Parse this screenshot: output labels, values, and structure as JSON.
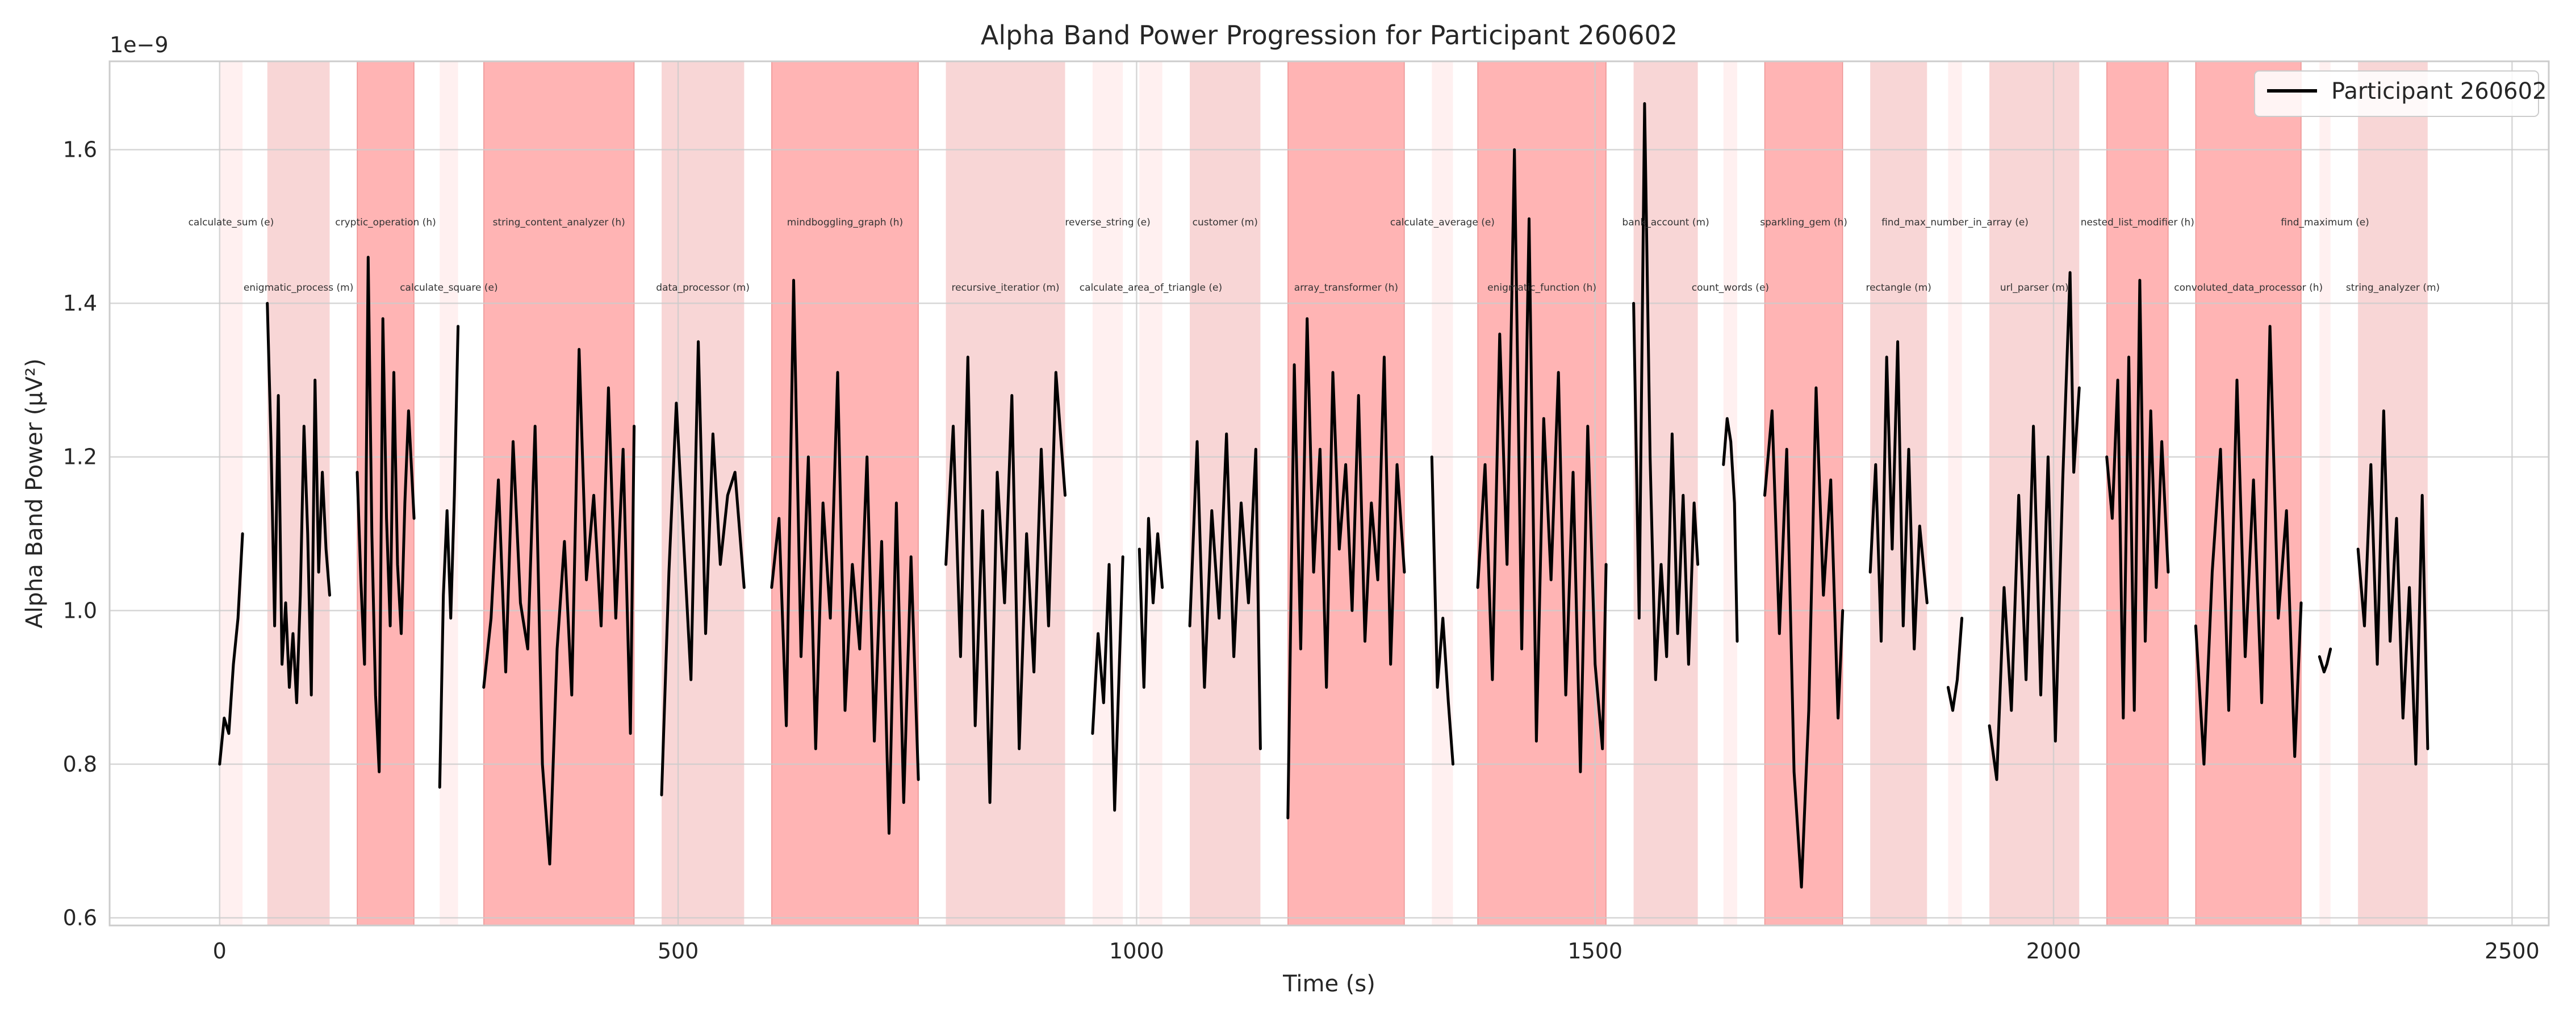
{
  "chart_data": {
    "type": "line",
    "title": "Alpha Band Power Progression for Participant 260602",
    "xlabel": "Time (s)",
    "ylabel": "Alpha Band Power (μV²)",
    "y_offset_text": "1e−9",
    "xlim": [
      -120,
      2540
    ],
    "ylim": [
      0.59,
      1.715
    ],
    "x_ticks": [
      0,
      500,
      1000,
      1500,
      2000,
      2500
    ],
    "x_tick_labels": [
      "0",
      "500",
      "1000",
      "1500",
      "2000",
      "2500"
    ],
    "y_ticks": [
      0.6,
      0.8,
      1.0,
      1.2,
      1.4,
      1.6
    ],
    "y_tick_labels": [
      "0.6",
      "0.8",
      "1.0",
      "1.2",
      "1.4",
      "1.6"
    ],
    "grid": true,
    "legend_position": "upper right",
    "legend": [
      {
        "name": "Participant 260602",
        "color": "#000000"
      }
    ],
    "difficulty_colors": {
      "e": "#fff0f0",
      "m": "#f8d6d6",
      "h": "#ffb0b0"
    },
    "tasks": [
      {
        "label": "calculate_sum (e)",
        "start": 0,
        "end": 25,
        "difficulty": "e",
        "row": 1
      },
      {
        "label": "enigmatic_process (m)",
        "start": 52,
        "end": 120,
        "difficulty": "m",
        "row": 2
      },
      {
        "label": "cryptic_operation (h)",
        "start": 150,
        "end": 212,
        "difficulty": "h",
        "row": 1
      },
      {
        "label": "calculate_square (e)",
        "start": 240,
        "end": 260,
        "difficulty": "e",
        "row": 2
      },
      {
        "label": "string_content_analyzer (h)",
        "start": 288,
        "end": 452,
        "difficulty": "h",
        "row": 1
      },
      {
        "label": "data_processor (m)",
        "start": 482,
        "end": 572,
        "difficulty": "m",
        "row": 2
      },
      {
        "label": "mindboggling_graph (h)",
        "start": 602,
        "end": 762,
        "difficulty": "h",
        "row": 1
      },
      {
        "label": "recursive_iteratior (m)",
        "start": 792,
        "end": 922,
        "difficulty": "m",
        "row": 2
      },
      {
        "label": "reverse_string (e)",
        "start": 952,
        "end": 985,
        "difficulty": "e",
        "row": 1
      },
      {
        "label": "calculate_area_of_triangle (e)",
        "start": 1003,
        "end": 1028,
        "difficulty": "e",
        "row": 2
      },
      {
        "label": "customer (m)",
        "start": 1058,
        "end": 1135,
        "difficulty": "m",
        "row": 1
      },
      {
        "label": "array_transformer (h)",
        "start": 1165,
        "end": 1292,
        "difficulty": "h",
        "row": 2
      },
      {
        "label": "calculate_average (e)",
        "start": 1322,
        "end": 1345,
        "difficulty": "e",
        "row": 1
      },
      {
        "label": "enigmatic_function (h)",
        "start": 1372,
        "end": 1512,
        "difficulty": "h",
        "row": 2
      },
      {
        "label": "bank_account (m)",
        "start": 1542,
        "end": 1612,
        "difficulty": "m",
        "row": 1
      },
      {
        "label": "count_words (e)",
        "start": 1640,
        "end": 1655,
        "difficulty": "e",
        "row": 2
      },
      {
        "label": "sparkling_gem (h)",
        "start": 1685,
        "end": 1770,
        "difficulty": "h",
        "row": 1
      },
      {
        "label": "rectangle (m)",
        "start": 1800,
        "end": 1862,
        "difficulty": "m",
        "row": 2
      },
      {
        "label": "find_max_number_in_array (e)",
        "start": 1885,
        "end": 1900,
        "difficulty": "e",
        "row": 1
      },
      {
        "label": "url_parser (m)",
        "start": 1930,
        "end": 2028,
        "difficulty": "m",
        "row": 2
      },
      {
        "label": "nested_list_modifier (h)",
        "start": 2058,
        "end": 2125,
        "difficulty": "h",
        "row": 1
      },
      {
        "label": "convoluted_data_processor (h)",
        "start": 2155,
        "end": 2270,
        "difficulty": "h",
        "row": 2
      },
      {
        "label": "find_maximum (e)",
        "start": 2290,
        "end": 2302,
        "difficulty": "e",
        "row": 1
      },
      {
        "label": "string_analyzer (m)",
        "start": 2332,
        "end": 2408,
        "difficulty": "m",
        "row": 2
      }
    ],
    "series": [
      {
        "name": "Participant 260602",
        "color": "#000000",
        "segments": [
          {
            "x": [
              0,
              5,
              10,
              15,
              20,
              25
            ],
            "y": [
              0.8,
              0.86,
              0.84,
              0.93,
              0.99,
              1.1
            ]
          },
          {
            "x": [
              52,
              56,
              60,
              64,
              68,
              72,
              76,
              80,
              84,
              88,
              92,
              96,
              100,
              104,
              108,
              112,
              116,
              120
            ],
            "y": [
              1.4,
              1.22,
              0.98,
              1.28,
              0.93,
              1.01,
              0.9,
              0.97,
              0.88,
              1.02,
              1.24,
              1.1,
              0.89,
              1.3,
              1.05,
              1.18,
              1.08,
              1.02
            ]
          },
          {
            "x": [
              150,
              154,
              158,
              162,
              166,
              170,
              174,
              178,
              182,
              186,
              190,
              194,
              198,
              202,
              206,
              212
            ],
            "y": [
              1.18,
              1.04,
              0.93,
              1.46,
              1.1,
              0.89,
              0.79,
              1.38,
              1.12,
              0.98,
              1.31,
              1.06,
              0.97,
              1.14,
              1.26,
              1.12
            ]
          },
          {
            "x": [
              240,
              244,
              248,
              252,
              256,
              260
            ],
            "y": [
              0.77,
              1.02,
              1.13,
              0.99,
              1.15,
              1.37
            ]
          },
          {
            "x": [
              288,
              296,
              304,
              312,
              320,
              328,
              336,
              344,
              352,
              360,
              368,
              376,
              384,
              392,
              400,
              408,
              416,
              424,
              432,
              440,
              448,
              452
            ],
            "y": [
              0.9,
              0.99,
              1.17,
              0.92,
              1.22,
              1.01,
              0.95,
              1.24,
              0.8,
              0.67,
              0.95,
              1.09,
              0.89,
              1.34,
              1.04,
              1.15,
              0.98,
              1.29,
              0.99,
              1.21,
              0.84,
              1.24
            ]
          },
          {
            "x": [
              482,
              490,
              498,
              506,
              514,
              522,
              530,
              538,
              546,
              554,
              562,
              572
            ],
            "y": [
              0.76,
              1.05,
              1.27,
              1.09,
              0.91,
              1.35,
              0.97,
              1.23,
              1.06,
              1.15,
              1.18,
              1.03
            ]
          },
          {
            "x": [
              602,
              610,
              618,
              626,
              634,
              642,
              650,
              658,
              666,
              674,
              682,
              690,
              698,
              706,
              714,
              722,
              730,
              738,
              746,
              754,
              762
            ],
            "y": [
              1.03,
              1.12,
              0.85,
              1.43,
              0.94,
              1.2,
              0.82,
              1.14,
              0.99,
              1.31,
              0.87,
              1.06,
              0.95,
              1.2,
              0.83,
              1.09,
              0.71,
              1.14,
              0.75,
              1.07,
              0.78
            ]
          },
          {
            "x": [
              792,
              800,
              808,
              816,
              824,
              832,
              840,
              848,
              856,
              864,
              872,
              880,
              888,
              896,
              904,
              912,
              922
            ],
            "y": [
              1.06,
              1.24,
              0.94,
              1.33,
              0.85,
              1.13,
              0.75,
              1.18,
              1.01,
              1.28,
              0.82,
              1.1,
              0.92,
              1.21,
              0.98,
              1.31,
              1.15
            ]
          },
          {
            "x": [
              952,
              958,
              964,
              970,
              976,
              985
            ],
            "y": [
              0.84,
              0.97,
              0.88,
              1.06,
              0.74,
              1.07
            ]
          },
          {
            "x": [
              1003,
              1008,
              1013,
              1018,
              1023,
              1028
            ],
            "y": [
              1.08,
              0.9,
              1.12,
              1.01,
              1.1,
              1.03
            ]
          },
          {
            "x": [
              1058,
              1066,
              1074,
              1082,
              1090,
              1098,
              1106,
              1114,
              1122,
              1130,
              1135
            ],
            "y": [
              0.98,
              1.22,
              0.9,
              1.13,
              0.99,
              1.23,
              0.94,
              1.14,
              1.01,
              1.21,
              0.82
            ]
          },
          {
            "x": [
              1165,
              1172,
              1179,
              1186,
              1193,
              1200,
              1207,
              1214,
              1221,
              1228,
              1235,
              1242,
              1249,
              1256,
              1263,
              1270,
              1277,
              1284,
              1292
            ],
            "y": [
              0.73,
              1.32,
              0.95,
              1.38,
              1.05,
              1.21,
              0.9,
              1.31,
              1.08,
              1.19,
              1.0,
              1.28,
              0.96,
              1.14,
              1.04,
              1.33,
              0.93,
              1.19,
              1.05
            ]
          },
          {
            "x": [
              1322,
              1328,
              1334,
              1340,
              1345
            ],
            "y": [
              1.2,
              0.9,
              0.99,
              0.88,
              0.8
            ]
          },
          {
            "x": [
              1372,
              1380,
              1388,
              1396,
              1404,
              1412,
              1420,
              1428,
              1436,
              1444,
              1452,
              1460,
              1468,
              1476,
              1484,
              1492,
              1500,
              1508,
              1512
            ],
            "y": [
              1.03,
              1.19,
              0.91,
              1.36,
              1.06,
              1.6,
              0.95,
              1.51,
              0.83,
              1.25,
              1.04,
              1.31,
              0.89,
              1.18,
              0.79,
              1.24,
              0.93,
              0.82,
              1.06
            ]
          },
          {
            "x": [
              1542,
              1548,
              1554,
              1560,
              1566,
              1572,
              1578,
              1584,
              1590,
              1596,
              1602,
              1608,
              1612
            ],
            "y": [
              1.4,
              0.99,
              1.66,
              1.2,
              0.91,
              1.06,
              0.94,
              1.23,
              0.97,
              1.15,
              0.93,
              1.14,
              1.06
            ]
          },
          {
            "x": [
              1640,
              1644,
              1648,
              1652,
              1655
            ],
            "y": [
              1.19,
              1.25,
              1.22,
              1.14,
              0.96
            ]
          },
          {
            "x": [
              1685,
              1693,
              1701,
              1709,
              1717,
              1725,
              1733,
              1741,
              1749,
              1757,
              1765,
              1770
            ],
            "y": [
              1.15,
              1.26,
              0.97,
              1.21,
              0.79,
              0.64,
              0.87,
              1.29,
              1.02,
              1.17,
              0.86,
              1.0
            ]
          },
          {
            "x": [
              1800,
              1806,
              1812,
              1818,
              1824,
              1830,
              1836,
              1842,
              1848,
              1854,
              1862
            ],
            "y": [
              1.05,
              1.19,
              0.96,
              1.33,
              1.08,
              1.35,
              0.98,
              1.21,
              0.95,
              1.11,
              1.01
            ]
          },
          {
            "x": [
              1885,
              1890,
              1895,
              1900
            ],
            "y": [
              0.9,
              0.87,
              0.91,
              0.99
            ]
          },
          {
            "x": [
              1930,
              1938,
              1946,
              1954,
              1962,
              1970,
              1978,
              1986,
              1994,
              2002,
              2010,
              2018,
              2022,
              2028
            ],
            "y": [
              0.85,
              0.78,
              1.03,
              0.87,
              1.15,
              0.91,
              1.24,
              0.89,
              1.2,
              0.83,
              1.17,
              1.44,
              1.18,
              1.29
            ]
          },
          {
            "x": [
              2058,
              2064,
              2070,
              2076,
              2082,
              2088,
              2094,
              2100,
              2106,
              2112,
              2118,
              2125
            ],
            "y": [
              1.2,
              1.12,
              1.3,
              0.86,
              1.33,
              0.87,
              1.43,
              0.96,
              1.26,
              1.03,
              1.22,
              1.05
            ]
          },
          {
            "x": [
              2155,
              2164,
              2173,
              2182,
              2191,
              2200,
              2209,
              2218,
              2227,
              2236,
              2245,
              2254,
              2263,
              2270
            ],
            "y": [
              0.98,
              0.8,
              1.05,
              1.21,
              0.87,
              1.3,
              0.94,
              1.17,
              0.88,
              1.37,
              0.99,
              1.13,
              0.81,
              1.01
            ]
          },
          {
            "x": [
              2290,
              2295,
              2298,
              2302
            ],
            "y": [
              0.94,
              0.92,
              0.93,
              0.95
            ]
          },
          {
            "x": [
              2332,
              2339,
              2346,
              2353,
              2360,
              2367,
              2374,
              2381,
              2388,
              2395,
              2402,
              2408
            ],
            "y": [
              1.08,
              0.98,
              1.19,
              0.93,
              1.26,
              0.96,
              1.12,
              0.86,
              1.03,
              0.8,
              1.15,
              0.82
            ]
          }
        ]
      }
    ]
  }
}
